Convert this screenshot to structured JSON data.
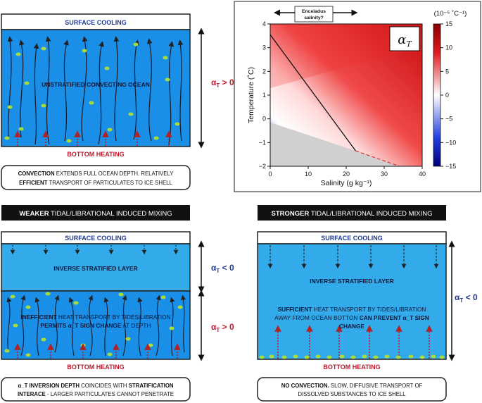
{
  "colors": {
    "ocean": "#1a8fe8",
    "ocean_stratified": "#33aaea",
    "arrow_red": "#b22222",
    "label_blue": "#1f3a93",
    "label_red": "#c0182b",
    "particle": "#a8dc3c"
  },
  "panel_tl": {
    "top_label": "SURFACE COOLING",
    "center_label": "UNSTRATIFIED CONVECTING OCEAN",
    "bottom_label": "BOTTOM HEATING",
    "side_label": "α_T > 0",
    "caption_l1_bold": "CONVECTION",
    "caption_l1_rest": " EXTENDS FULL OCEAN DEPTH. RELATIVELY",
    "caption_l2_bold": "EFFICIENT",
    "caption_l2_rest": " TRANSPORT OF PARTICULATES TO ICE SHELL"
  },
  "chart": {
    "title_symbol": "α_T",
    "xlabel": "Salinity (g kg⁻¹)",
    "ylabel": "Temperature (˚C)",
    "enceladus_l1": "Enceladus",
    "enceladus_l2": "salinity?",
    "colorbar_label": "(10⁻⁵ ˚C⁻¹)",
    "cbar_ticks": [
      "15",
      "10",
      "5",
      "0",
      "−5",
      "−10",
      "−15"
    ],
    "cbar_tick_values": [
      15,
      10,
      5,
      0,
      -5,
      -10,
      -15
    ],
    "x_ticks": [
      "0",
      "10",
      "20",
      "30",
      "40"
    ],
    "x_tick_values": [
      0,
      10,
      20,
      30,
      40
    ],
    "y_ticks": [
      "4",
      "3",
      "2",
      "1",
      "0",
      "−1",
      "−2"
    ],
    "y_tick_values": [
      4,
      3,
      2,
      1,
      0,
      -1,
      -2
    ]
  },
  "chart_data": {
    "type": "heatmap",
    "title": "α_T",
    "xlabel": "Salinity (g kg⁻¹)",
    "ylabel": "Temperature (˚C)",
    "xlim": [
      0,
      40
    ],
    "ylim": [
      -2,
      4
    ],
    "clim": [
      -15,
      15
    ],
    "colorbar_units": "10⁻⁵ ˚C⁻¹",
    "zero_contour": [
      [
        0,
        3.55
      ],
      [
        22.5,
        -1.35
      ]
    ],
    "freezing_line": [
      [
        0,
        -0.15
      ],
      [
        22.5,
        -1.35
      ],
      [
        34,
        -2
      ]
    ],
    "annotation": "Enceladus salinity?",
    "annotation_range": [
      4,
      20
    ]
  },
  "section_weak": {
    "header_bold": "WEAKER",
    "header_rest": " TIDAL/LIBRATIONAL INDUCED MIXING",
    "top_label": "SURFACE COOLING",
    "layer_label": "INVERSE STRATIFIED LAYER",
    "center_bold1": "INEFFICIENT",
    "center_rest1": " HEAT TRANSPORT BY TIDES/LIBRATION",
    "center_bold2": "PERMITS α_T SIGN CHANGE",
    "center_rest2": " AT DEPTH",
    "bottom_label": "BOTTOM HEATING",
    "side_label_top": "α_T < 0",
    "side_label_bottom": "α_T > 0",
    "caption_l1_bold1": "α_T INVERSION DEPTH",
    "caption_l1_rest": " COINCIDES WITH ",
    "caption_l1_bold2": "STRATIFICATION",
    "caption_l2_bold": "INTERACE",
    "caption_l2_rest": " - LARGER PARTICULATES CANNOT PENETRATE"
  },
  "section_strong": {
    "header_bold": "STRONGER",
    "header_rest": " TIDAL/LIBRATIONAL INDUCED MIXING",
    "top_label": "SURFACE COOLING",
    "layer_label": "INVERSE STRATIFIED LAYER",
    "center_bold1": "SUFFICIENT",
    "center_rest1": " HEAT TRANSPORT BY TIDES/LIBRATION",
    "center_l2": "AWAY FROM OCEAN BOTTON ",
    "center_bold2": "CAN PREVENT α_T SIGN",
    "center_l3": "CHANGE",
    "bottom_label": "BOTTOM HEATING",
    "side_label": "α_T < 0",
    "caption_l1_bold": "NO CONVECTION.",
    "caption_l1_rest": " SLOW, DIFFUSIVE TRANSPORT OF",
    "caption_l2": "DISSOLVED SUBSTANCES TO ICE SHELL"
  }
}
